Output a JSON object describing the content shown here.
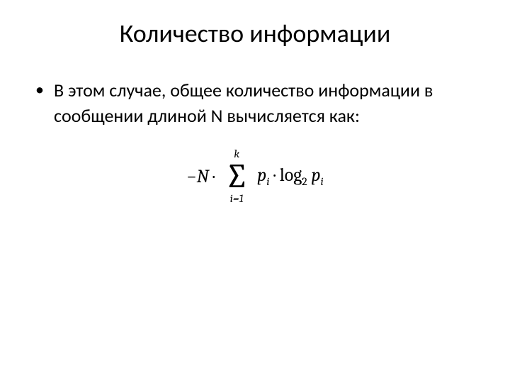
{
  "title": "Количество информации",
  "bullet": {
    "text": "В этом случае, общее количество информации в сообщении длиной N вычисляется как:"
  },
  "formula": {
    "prefix_minus": "−",
    "N": "N",
    "dot": "·",
    "sum_upper": "k",
    "sigma": "∑",
    "sum_lower": "i=1",
    "p": "p",
    "sub_i": "i",
    "log": "log",
    "log_base": "2"
  },
  "style": {
    "title_fontsize": 36,
    "body_fontsize": 26,
    "formula_fontsize": 26,
    "sigma_fontsize": 48,
    "sumscript_fontsize": 16,
    "subscript_fontsize": 16,
    "text_color": "#000000",
    "background_color": "#ffffff"
  }
}
